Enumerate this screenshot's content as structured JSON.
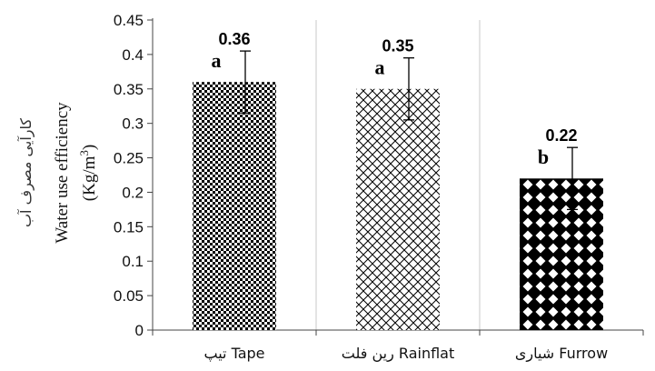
{
  "chart_data": {
    "type": "bar",
    "categories": [
      "تیپ Tape",
      "رین فلت Rainflat",
      "شیاری Furrow"
    ],
    "values": [
      0.36,
      0.35,
      0.22
    ],
    "value_labels": [
      "0.36",
      "0.35",
      "0.22"
    ],
    "error_bars": [
      {
        "low": 0.315,
        "high": 0.405
      },
      {
        "low": 0.305,
        "high": 0.395
      },
      {
        "low": 0.175,
        "high": 0.265
      }
    ],
    "significance_letters": [
      "a",
      "a",
      "b"
    ],
    "patterns": [
      "checkerboard",
      "crosshatch",
      "diamond-lattice"
    ],
    "ylabel_fa": "کارآیی مصرف آب",
    "ylabel_en": "Water use efficiency",
    "ylabel_unit": "(Kg/m3)",
    "ylim": [
      0,
      0.45
    ],
    "yticks": [
      "0",
      "0.05",
      "0.1",
      "0.15",
      "0.2",
      "0.25",
      "0.3",
      "0.35",
      "0.4",
      "0.45"
    ],
    "grid": "vertical-only",
    "colors": {
      "bar": "#000000",
      "background": "#ffffff",
      "grid": "#cccccc"
    }
  }
}
